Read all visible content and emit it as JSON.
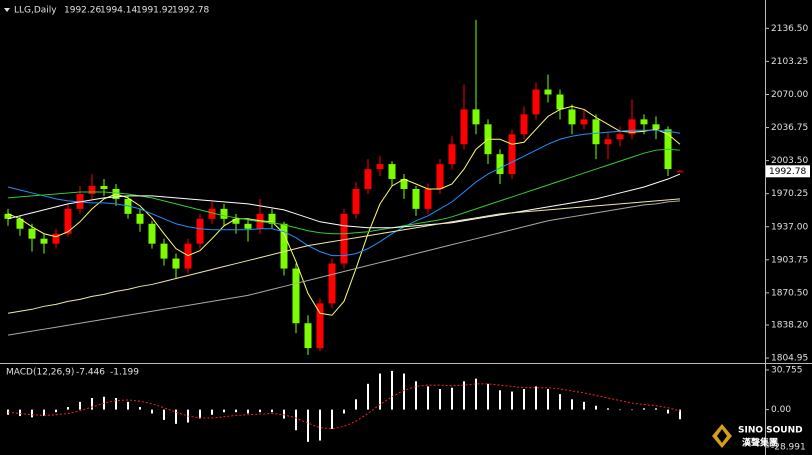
{
  "chart_data": {
    "type": "candlestick",
    "title": "LLG,Daily",
    "header_values": [
      1992.26,
      1994.14,
      1991.92,
      1992.78
    ],
    "last_price": 1992.78,
    "up_color": "#ff0000",
    "down_color": "#7cfc00",
    "ylim": [
      1800,
      2160
    ],
    "yticks": [
      {
        "value": 2136.5,
        "label": "2136.50"
      },
      {
        "value": 2103.25,
        "label": "2103.25"
      },
      {
        "value": 2070,
        "label": "2070.00"
      },
      {
        "value": 2036.75,
        "label": "2036.75"
      },
      {
        "value": 2003.5,
        "label": "2003.50"
      },
      {
        "value": 1970.25,
        "label": "1970.25"
      },
      {
        "value": 1937,
        "label": "1937.00"
      },
      {
        "value": 1903.75,
        "label": "1903.75"
      },
      {
        "value": 1870.5,
        "label": "1870.50"
      },
      {
        "value": 1838.2,
        "label": "1838.20"
      },
      1804.95
    ],
    "open": [
      1950,
      1945,
      1935,
      1925,
      1920,
      1930,
      1955,
      1970,
      1978,
      1975,
      1965,
      1950,
      1940,
      1920,
      1905,
      1895,
      1920,
      1945,
      1955,
      1945,
      1940,
      1935,
      1950,
      1940,
      1895,
      1840,
      1815,
      1860,
      1900,
      1950,
      1975,
      1995,
      2000,
      1985,
      1975,
      1955,
      1975,
      2000,
      2020,
      2055,
      2040,
      2010,
      1990,
      2030,
      2050,
      2075,
      2070,
      2055,
      2040,
      2045,
      2020,
      2025,
      2030,
      2045,
      2040,
      2035,
      1992.26
    ],
    "high": [
      1955,
      1948,
      1940,
      1930,
      1935,
      1960,
      1978,
      1990,
      1985,
      1980,
      1968,
      1955,
      1943,
      1925,
      1910,
      1925,
      1950,
      1962,
      1960,
      1950,
      1945,
      1965,
      1955,
      1942,
      1900,
      1848,
      1865,
      1905,
      1955,
      1982,
      2005,
      2008,
      2003,
      1990,
      1978,
      1980,
      2005,
      2028,
      2080,
      2145,
      2045,
      2015,
      2035,
      2058,
      2082,
      2090,
      2075,
      2060,
      2055,
      2050,
      2032,
      2038,
      2065,
      2050,
      2048,
      2038,
      1994.14
    ],
    "low": [
      1938,
      1928,
      1912,
      1910,
      1915,
      1927,
      1950,
      1965,
      1968,
      1958,
      1945,
      1932,
      1915,
      1898,
      1885,
      1890,
      1915,
      1940,
      1938,
      1930,
      1922,
      1930,
      1935,
      1888,
      1830,
      1808,
      1812,
      1855,
      1895,
      1945,
      1970,
      1988,
      1978,
      1965,
      1948,
      1950,
      1970,
      1995,
      2015,
      2030,
      2000,
      1980,
      1985,
      2025,
      2045,
      2062,
      2045,
      2030,
      2035,
      2005,
      2005,
      2018,
      2025,
      2030,
      2025,
      1988,
      1991.92
    ],
    "close": [
      1945,
      1935,
      1925,
      1920,
      1930,
      1955,
      1970,
      1978,
      1975,
      1965,
      1950,
      1940,
      1920,
      1905,
      1895,
      1920,
      1945,
      1955,
      1945,
      1940,
      1935,
      1950,
      1940,
      1895,
      1840,
      1815,
      1860,
      1900,
      1950,
      1975,
      1995,
      2000,
      1985,
      1975,
      1955,
      1975,
      2000,
      2020,
      2055,
      2040,
      2010,
      1990,
      2030,
      2050,
      2075,
      2070,
      2055,
      2040,
      2045,
      2020,
      2025,
      2030,
      2045,
      2040,
      2035,
      1995,
      1992.78
    ],
    "moving_averages": [
      {
        "color": "#ffff66",
        "values": [
          1950,
          1945,
          1937,
          1930,
          1927,
          1932,
          1942,
          1955,
          1965,
          1970,
          1966,
          1958,
          1946,
          1930,
          1915,
          1908,
          1913,
          1925,
          1938,
          1945,
          1945,
          1943,
          1942,
          1930,
          1902,
          1870,
          1850,
          1848,
          1862,
          1895,
          1930,
          1960,
          1978,
          1985,
          1980,
          1975,
          1975,
          1980,
          1995,
          2015,
          2025,
          2025,
          2020,
          2022,
          2035,
          2048,
          2055,
          2058,
          2055,
          2047,
          2040,
          2033,
          2032,
          2033,
          2035,
          2030,
          2020
        ]
      },
      {
        "color": "#1e90ff",
        "values": [
          1977,
          1974,
          1971,
          1968,
          1965,
          1963,
          1962,
          1961,
          1961,
          1960,
          1958,
          1955,
          1950,
          1945,
          1940,
          1937,
          1935,
          1934,
          1934,
          1934,
          1934,
          1935,
          1935,
          1932,
          1926,
          1918,
          1912,
          1908,
          1908,
          1910,
          1915,
          1922,
          1930,
          1937,
          1943,
          1948,
          1955,
          1962,
          1972,
          1982,
          1990,
          1996,
          2002,
          2008,
          2014,
          2020,
          2025,
          2028,
          2030,
          2031,
          2032,
          2033,
          2034,
          2034,
          2034,
          2033,
          2031
        ]
      },
      {
        "color": "#32cd32",
        "values": [
          1966,
          1967,
          1968,
          1969,
          1970,
          1971,
          1972,
          1972,
          1972,
          1971,
          1970,
          1968,
          1966,
          1963,
          1960,
          1957,
          1954,
          1951,
          1948,
          1946,
          1944,
          1942,
          1941,
          1939,
          1936,
          1933,
          1931,
          1930,
          1930,
          1931,
          1932,
          1934,
          1936,
          1938,
          1940,
          1942,
          1944,
          1947,
          1951,
          1955,
          1959,
          1963,
          1967,
          1971,
          1975,
          1979,
          1983,
          1987,
          1991,
          1995,
          1999,
          2003,
          2007,
          2011,
          2014,
          2015,
          2014
        ]
      },
      {
        "color": "#ffffff",
        "values": [
          1945,
          1948,
          1951,
          1954,
          1957,
          1960,
          1962,
          1964,
          1966,
          1967,
          1968,
          1968,
          1968,
          1967,
          1966,
          1965,
          1964,
          1963,
          1962,
          1961,
          1960,
          1958,
          1956,
          1954,
          1950,
          1946,
          1942,
          1940,
          1938,
          1937,
          1936,
          1936,
          1936,
          1937,
          1938,
          1939,
          1940,
          1941,
          1943,
          1945,
          1947,
          1949,
          1951,
          1953,
          1955,
          1957,
          1959,
          1961,
          1963,
          1965,
          1968,
          1971,
          1974,
          1977,
          1981,
          1985,
          1990
        ]
      },
      {
        "color": "#eee8aa",
        "values": [
          1850,
          1852,
          1854,
          1857,
          1859,
          1862,
          1864,
          1867,
          1869,
          1872,
          1874,
          1877,
          1879,
          1882,
          1885,
          1888,
          1891,
          1894,
          1897,
          1900,
          1903,
          1906,
          1909,
          1912,
          1915,
          1918,
          1920,
          1922,
          1924,
          1926,
          1928,
          1930,
          1932,
          1934,
          1936,
          1938,
          1940,
          1942,
          1944,
          1946,
          1948,
          1950,
          1951,
          1952,
          1953,
          1954,
          1955,
          1956,
          1957,
          1958,
          1959,
          1960,
          1961,
          1962,
          1963,
          1964,
          1965
        ]
      },
      {
        "color": "#a9a9a9",
        "values": [
          1828,
          1830,
          1832,
          1834,
          1836,
          1838,
          1840,
          1842,
          1844,
          1846,
          1848,
          1850,
          1852,
          1854,
          1856,
          1858,
          1860,
          1862,
          1864,
          1866,
          1868,
          1871,
          1874,
          1877,
          1880,
          1883,
          1886,
          1889,
          1892,
          1895,
          1898,
          1901,
          1904,
          1907,
          1910,
          1913,
          1916,
          1919,
          1922,
          1925,
          1928,
          1931,
          1934,
          1937,
          1940,
          1943,
          1945,
          1947,
          1949,
          1951,
          1953,
          1955,
          1957,
          1959,
          1960,
          1962,
          1963
        ]
      }
    ],
    "indicator": {
      "label": "MACD(12,26,9)",
      "printed_values": [
        -7.446,
        -1.199
      ],
      "histogram_color": "#ffffff",
      "signal_color": "#ff2020",
      "y2lim": [
        -35.2,
        34.6
      ],
      "y2ticks": [
        30.755,
        {
          "value": 0,
          "label": "0.00"
        },
        -28.991
      ],
      "histogram": [
        -4,
        -5,
        -6,
        -5,
        -2,
        2,
        6,
        9,
        10,
        9,
        6,
        2,
        -3,
        -8,
        -11,
        -10,
        -7,
        -4,
        -2,
        -2,
        -3,
        -2,
        -2,
        -7,
        -16,
        -25,
        -24,
        -15,
        -3,
        8,
        20,
        28,
        30,
        28,
        22,
        18,
        16,
        17,
        22,
        24,
        20,
        15,
        14,
        16,
        18,
        16,
        12,
        8,
        6,
        3,
        1,
        0,
        0,
        1,
        1,
        -3,
        -7.446
      ],
      "signal": [
        -2,
        -3,
        -4,
        -4.5,
        -4,
        -3,
        -1,
        2,
        5,
        7,
        7.5,
        6.5,
        4.5,
        1.5,
        -2,
        -5,
        -6.5,
        -6.5,
        -5.5,
        -4.5,
        -4,
        -3.5,
        -3,
        -4,
        -6.5,
        -10.5,
        -14,
        -15,
        -13,
        -9,
        -3,
        4,
        10,
        15,
        18,
        19,
        19,
        18.5,
        19,
        20,
        20,
        19,
        18,
        17,
        17,
        17,
        16,
        14.5,
        13,
        11,
        9,
        7,
        5,
        4,
        3,
        1.5,
        -1.199
      ]
    }
  },
  "logo": {
    "name": "SINO SOUND",
    "subtitle": "漢聲集團"
  }
}
